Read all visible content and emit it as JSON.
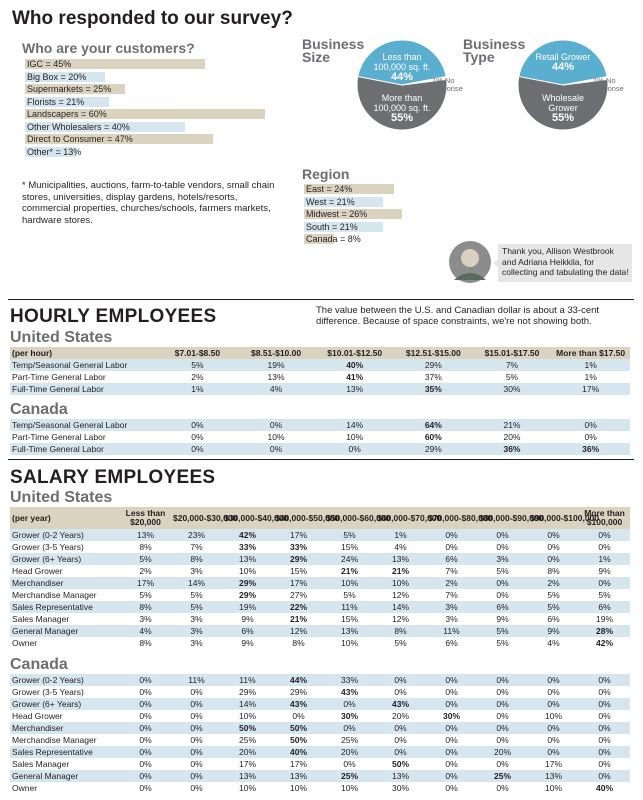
{
  "header": {
    "title": "Who responded to our survey?"
  },
  "customers": {
    "title": "Who are your customers?",
    "colors": [
      "#d9d3c0",
      "#d6e6ef"
    ],
    "items": [
      {
        "label": "IGC = 45%",
        "value": 45
      },
      {
        "label": "Big Box = 20%",
        "value": 20
      },
      {
        "label": "Supermarkets = 25%",
        "value": 25
      },
      {
        "label": "Florists = 21%",
        "value": 21
      },
      {
        "label": "Landscapers = 60%",
        "value": 60
      },
      {
        "label": "Other Wholesalers = 40%",
        "value": 40
      },
      {
        "label": "Direct to Consumer = 47%",
        "value": 47
      },
      {
        "label": "Other* = 13%",
        "value": 13
      }
    ],
    "footnote": "* Municipalities, auctions, farm-to-table vendors, small chain stores, universities, display gardens, hotels/resorts, commercial properties, churches/schools, farmers markets, hardware stores."
  },
  "pies": [
    {
      "title": "Business Size",
      "slices": [
        {
          "name": "Less than 100,000 sq. ft.",
          "value": 44,
          "label": "44%",
          "color": "#5aaed0"
        },
        {
          "name": "More than 100,000 sq. ft.",
          "value": 55,
          "label": "55%",
          "color": "#6d6e71"
        },
        {
          "value": 1,
          "label": "1% No response",
          "color": "#ffffff"
        }
      ]
    },
    {
      "title": "Business Type",
      "slices": [
        {
          "name": "Retail Grower",
          "value": 44,
          "label": "44%",
          "color": "#5aaed0"
        },
        {
          "name": "Wholesale Grower",
          "value": 55,
          "label": "55%",
          "color": "#6d6e71"
        },
        {
          "value": 1,
          "label": "1% No response",
          "color": "#ffffff"
        }
      ]
    }
  ],
  "region": {
    "title": "Region",
    "colors": [
      "#d9d3c0",
      "#d6e6ef"
    ],
    "items": [
      {
        "label": "East = 24%",
        "value": 24
      },
      {
        "label": "West = 21%",
        "value": 21
      },
      {
        "label": "Midwest = 26%",
        "value": 26
      },
      {
        "label": "South = 21%",
        "value": 21
      },
      {
        "label": "Canada = 8%",
        "value": 8
      }
    ]
  },
  "thanks": "Thank you, Allison Westbrook and Adriana Heikkila, for collecting and tabulating the data!",
  "hourly": {
    "title": "HOURLY EMPLOYEES",
    "note": "The value between the U.S. and Canadian dollar is about a 33-cent difference. Because of space constraints, we're not showing both.",
    "us": {
      "title": "United States",
      "header": [
        "(per hour)",
        "$7.01-$8.50",
        "$8.51-$10.00",
        "$10.01-$12.50",
        "$12.51-$15.00",
        "$15.01-$17.50",
        "More than $17.50"
      ],
      "rows": [
        {
          "label": "Temp/Seasonal General Labor",
          "cells": [
            "5%",
            "19%",
            "40%",
            "29%",
            "7%",
            "1%"
          ],
          "bold": [
            2
          ]
        },
        {
          "label": "Part-Time General Labor",
          "cells": [
            "2%",
            "13%",
            "41%",
            "37%",
            "5%",
            "1%"
          ],
          "bold": [
            2
          ]
        },
        {
          "label": "Full-Time General Labor",
          "cells": [
            "1%",
            "4%",
            "13%",
            "35%",
            "30%",
            "17%"
          ],
          "bold": [
            3
          ]
        }
      ]
    },
    "canada": {
      "title": "Canada",
      "rows": [
        {
          "label": "Temp/Seasonal General Labor",
          "cells": [
            "0%",
            "0%",
            "14%",
            "64%",
            "21%",
            "0%"
          ],
          "bold": [
            3
          ]
        },
        {
          "label": "Part-Time General Labor",
          "cells": [
            "0%",
            "10%",
            "10%",
            "60%",
            "20%",
            "0%"
          ],
          "bold": [
            3
          ]
        },
        {
          "label": "Full-Time General Labor",
          "cells": [
            "0%",
            "0%",
            "0%",
            "29%",
            "36%",
            "36%"
          ],
          "bold": [
            4,
            5
          ]
        }
      ]
    }
  },
  "salary": {
    "title": "SALARY EMPLOYEES",
    "us": {
      "title": "United States",
      "header": [
        "(per year)",
        "Less than $20,000",
        "$20,000-$30,000",
        "$30,000-$40,000",
        "$40,000-$50,000",
        "$50,000-$60,000",
        "$60,000-$70,000",
        "$70,000-$80,000",
        "$80,000-$90,000",
        "$90,000-$100,000",
        "More than $100,000"
      ],
      "rows": [
        {
          "label": "Grower (0-2 Years)",
          "cells": [
            "13%",
            "23%",
            "42%",
            "17%",
            "5%",
            "1%",
            "0%",
            "0%",
            "0%",
            "0%"
          ],
          "bold": [
            2
          ]
        },
        {
          "label": "Grower (3-5 Years)",
          "cells": [
            "8%",
            "7%",
            "33%",
            "33%",
            "15%",
            "4%",
            "0%",
            "0%",
            "0%",
            "0%"
          ],
          "bold": [
            2,
            3
          ]
        },
        {
          "label": "Grower (6+ Years)",
          "cells": [
            "5%",
            "8%",
            "13%",
            "29%",
            "24%",
            "13%",
            "6%",
            "3%",
            "0%",
            "1%"
          ],
          "bold": [
            3
          ]
        },
        {
          "label": "Head Grower",
          "cells": [
            "2%",
            "3%",
            "10%",
            "15%",
            "21%",
            "21%",
            "7%",
            "5%",
            "8%",
            "9%"
          ],
          "bold": [
            4,
            5
          ]
        },
        {
          "label": "Merchandiser",
          "cells": [
            "17%",
            "14%",
            "29%",
            "17%",
            "10%",
            "10%",
            "2%",
            "0%",
            "2%",
            "0%"
          ],
          "bold": [
            2
          ]
        },
        {
          "label": "Merchandise Manager",
          "cells": [
            "5%",
            "5%",
            "29%",
            "27%",
            "5%",
            "12%",
            "7%",
            "0%",
            "5%",
            "5%"
          ],
          "bold": [
            2
          ]
        },
        {
          "label": "Sales Representative",
          "cells": [
            "8%",
            "5%",
            "19%",
            "22%",
            "11%",
            "14%",
            "3%",
            "6%",
            "5%",
            "6%"
          ],
          "bold": [
            3
          ]
        },
        {
          "label": "Sales Manager",
          "cells": [
            "3%",
            "3%",
            "9%",
            "21%",
            "15%",
            "12%",
            "3%",
            "9%",
            "6%",
            "19%"
          ],
          "bold": [
            3
          ]
        },
        {
          "label": "General Manager",
          "cells": [
            "4%",
            "3%",
            "6%",
            "12%",
            "13%",
            "8%",
            "11%",
            "5%",
            "9%",
            "28%"
          ],
          "bold": [
            9
          ]
        },
        {
          "label": "Owner",
          "cells": [
            "8%",
            "3%",
            "9%",
            "8%",
            "10%",
            "5%",
            "6%",
            "5%",
            "4%",
            "42%"
          ],
          "bold": [
            9
          ]
        }
      ]
    },
    "canada": {
      "title": "Canada",
      "rows": [
        {
          "label": "Grower (0-2 Years)",
          "cells": [
            "0%",
            "11%",
            "11%",
            "44%",
            "33%",
            "0%",
            "0%",
            "0%",
            "0%",
            "0%"
          ],
          "bold": [
            3
          ]
        },
        {
          "label": "Grower (3-5 Years)",
          "cells": [
            "0%",
            "0%",
            "29%",
            "29%",
            "43%",
            "0%",
            "0%",
            "0%",
            "0%",
            "0%"
          ],
          "bold": [
            4
          ]
        },
        {
          "label": "Grower (6+ Years)",
          "cells": [
            "0%",
            "0%",
            "14%",
            "43%",
            "0%",
            "43%",
            "0%",
            "0%",
            "0%",
            "0%"
          ],
          "bold": [
            3,
            5
          ]
        },
        {
          "label": "Head Grower",
          "cells": [
            "0%",
            "0%",
            "10%",
            "0%",
            "30%",
            "20%",
            "30%",
            "0%",
            "10%",
            "0%"
          ],
          "bold": [
            4,
            6
          ]
        },
        {
          "label": "Merchandiser",
          "cells": [
            "0%",
            "0%",
            "50%",
            "50%",
            "0%",
            "0%",
            "0%",
            "0%",
            "0%",
            "0%"
          ],
          "bold": [
            2,
            3
          ]
        },
        {
          "label": "Merchandise Manager",
          "cells": [
            "0%",
            "0%",
            "25%",
            "50%",
            "25%",
            "0%",
            "0%",
            "0%",
            "0%",
            "0%"
          ],
          "bold": [
            3
          ]
        },
        {
          "label": "Sales Representative",
          "cells": [
            "0%",
            "0%",
            "20%",
            "40%",
            "20%",
            "0%",
            "0%",
            "20%",
            "0%",
            "0%"
          ],
          "bold": [
            3
          ]
        },
        {
          "label": "Sales Manager",
          "cells": [
            "0%",
            "0%",
            "17%",
            "17%",
            "0%",
            "50%",
            "0%",
            "0%",
            "17%",
            "0%"
          ],
          "bold": [
            5
          ]
        },
        {
          "label": "General Manager",
          "cells": [
            "0%",
            "0%",
            "13%",
            "13%",
            "25%",
            "13%",
            "0%",
            "25%",
            "13%",
            "0%"
          ],
          "bold": [
            4,
            7
          ]
        },
        {
          "label": "Owner",
          "cells": [
            "0%",
            "0%",
            "10%",
            "10%",
            "10%",
            "30%",
            "0%",
            "0%",
            "10%",
            "40%"
          ],
          "bold": [
            9
          ]
        }
      ]
    }
  }
}
